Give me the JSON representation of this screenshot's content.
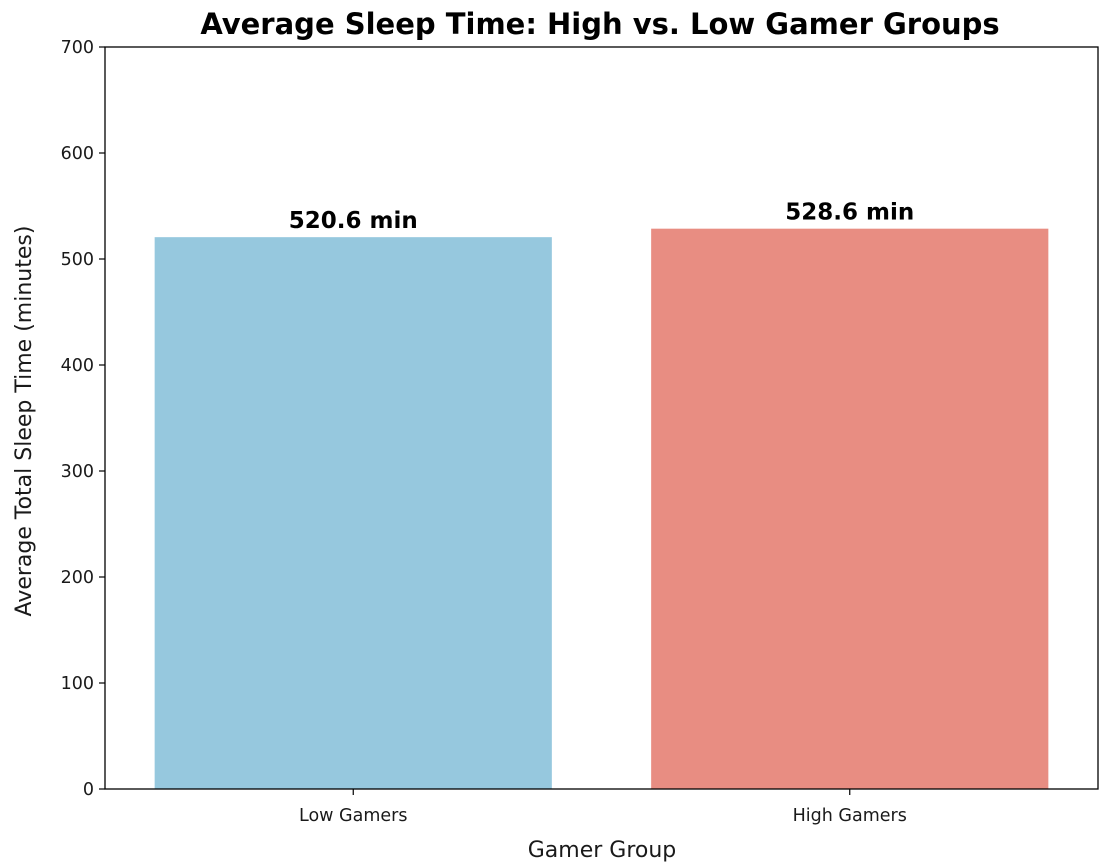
{
  "chart_data": {
    "type": "bar",
    "title": "Average Sleep Time: High vs. Low Gamer Groups",
    "xlabel": "Gamer Group",
    "ylabel": "Average Total Sleep Time (minutes)",
    "categories": [
      "Low Gamers",
      "High Gamers"
    ],
    "values": [
      520.6,
      528.6
    ],
    "data_labels": [
      "520.6 min",
      "528.6 min"
    ],
    "colors": [
      "#96c8de",
      "#e88d82"
    ],
    "ylim": [
      0,
      700
    ],
    "yticks": [
      0,
      100,
      200,
      300,
      400,
      500,
      600,
      700
    ],
    "grid": false,
    "legend": "none"
  }
}
